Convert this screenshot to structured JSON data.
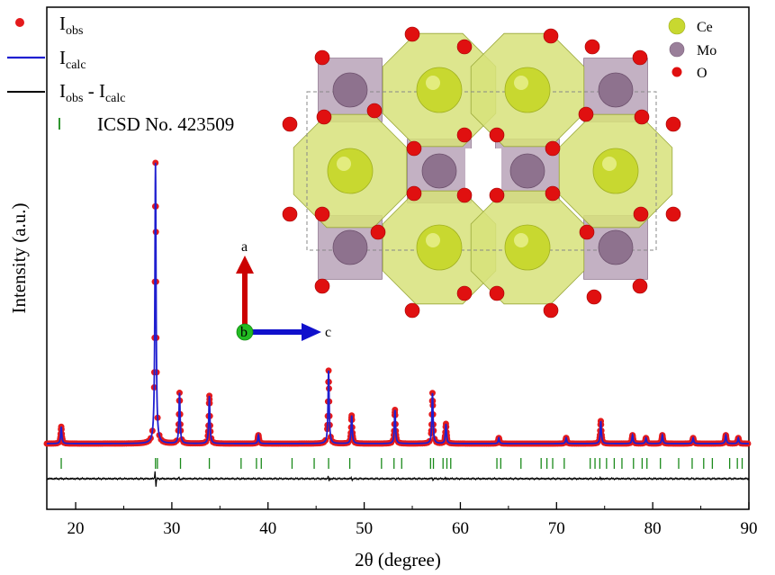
{
  "chart_data": {
    "type": "line",
    "xlabel": "2θ (degree)",
    "ylabel": "Intensity (a.u.)",
    "xlim": [
      17,
      90
    ],
    "x_ticks": [
      20,
      30,
      40,
      50,
      60,
      70,
      80,
      90
    ],
    "grid": false,
    "legend_position": "top-left",
    "legend": [
      {
        "main": "I",
        "sub": "obs",
        "full": "Iobs",
        "marker": "red-dot",
        "color": "#e41a1c"
      },
      {
        "main": "I",
        "sub": "calc",
        "full": "Icalc",
        "marker": "blue-line",
        "color": "#1f1fd0"
      },
      {
        "main": "I",
        "sub": "obs",
        "mid": " - I",
        "sub2": "calc",
        "full": "Iobs - Icalc",
        "marker": "black-line",
        "color": "#000000"
      },
      {
        "main": "ICSD No. 423509",
        "marker": "green-tick",
        "color": "#1a8a1a"
      }
    ],
    "peaks": [
      {
        "x": 18.5,
        "h": 0.06
      },
      {
        "x": 28.3,
        "h": 1.0
      },
      {
        "x": 30.8,
        "h": 0.18
      },
      {
        "x": 33.9,
        "h": 0.17
      },
      {
        "x": 39.0,
        "h": 0.03
      },
      {
        "x": 46.3,
        "h": 0.26
      },
      {
        "x": 48.7,
        "h": 0.1
      },
      {
        "x": 53.2,
        "h": 0.12
      },
      {
        "x": 57.1,
        "h": 0.18
      },
      {
        "x": 58.5,
        "h": 0.07
      },
      {
        "x": 64.0,
        "h": 0.02
      },
      {
        "x": 71.0,
        "h": 0.02
      },
      {
        "x": 74.6,
        "h": 0.08
      },
      {
        "x": 77.9,
        "h": 0.03
      },
      {
        "x": 79.3,
        "h": 0.02
      },
      {
        "x": 81.0,
        "h": 0.03
      },
      {
        "x": 84.2,
        "h": 0.02
      },
      {
        "x": 87.6,
        "h": 0.03
      },
      {
        "x": 88.9,
        "h": 0.02
      }
    ],
    "bragg_positions": [
      18.5,
      28.3,
      28.5,
      30.9,
      33.9,
      37.2,
      38.8,
      39.3,
      42.5,
      44.8,
      46.3,
      48.5,
      51.8,
      53.1,
      53.9,
      56.9,
      57.2,
      58.2,
      58.6,
      59.0,
      63.8,
      64.2,
      66.3,
      68.4,
      69.0,
      69.6,
      70.8,
      73.5,
      74.0,
      74.5,
      75.2,
      76.0,
      76.8,
      78.0,
      78.9,
      79.4,
      80.8,
      82.7,
      84.1,
      85.3,
      86.2,
      88.0,
      88.8,
      89.3
    ]
  },
  "inset": {
    "atom_legend": [
      {
        "label": "Ce",
        "color": "#c8d830"
      },
      {
        "label": "Mo",
        "color": "#9a7f9a"
      },
      {
        "label": "O",
        "color": "#e01010"
      }
    ],
    "axes": {
      "a_label": "a",
      "b_label": "b",
      "c_label": "c"
    }
  }
}
